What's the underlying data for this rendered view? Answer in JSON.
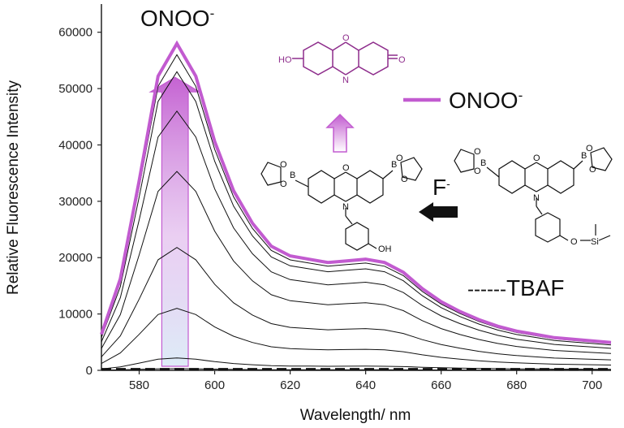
{
  "chart_data": {
    "type": "line",
    "title": "",
    "xlabel": "Wavelength/ nm",
    "ylabel": "Relative Fluorescence Intensity",
    "xlim": [
      570,
      705
    ],
    "ylim": [
      0,
      65000
    ],
    "x_ticks": [
      580,
      600,
      620,
      640,
      660,
      680,
      700
    ],
    "y_ticks": [
      0,
      10000,
      20000,
      30000,
      40000,
      50000,
      60000
    ],
    "x": [
      570,
      575,
      580,
      585,
      590,
      595,
      600,
      605,
      610,
      615,
      620,
      625,
      630,
      635,
      640,
      645,
      650,
      655,
      660,
      665,
      670,
      675,
      680,
      685,
      690,
      695,
      700,
      705
    ],
    "shape": [
      0.11,
      0.28,
      0.58,
      0.9,
      1.0,
      0.9,
      0.7,
      0.55,
      0.45,
      0.38,
      0.35,
      0.34,
      0.33,
      0.335,
      0.34,
      0.33,
      0.3,
      0.25,
      0.21,
      0.18,
      0.155,
      0.135,
      0.12,
      0.11,
      0.1,
      0.095,
      0.09,
      0.085
    ],
    "series_peaks": [
      300,
      2200,
      11000,
      21800,
      35300,
      46000,
      53000,
      56000,
      58000
    ],
    "series": [
      {
        "name": "",
        "peak": 300,
        "color": "#111111"
      },
      {
        "name": "",
        "peak": 2200,
        "color": "#111111"
      },
      {
        "name": "",
        "peak": 11000,
        "color": "#111111"
      },
      {
        "name": "",
        "peak": 21800,
        "color": "#111111"
      },
      {
        "name": "",
        "peak": 35300,
        "color": "#111111"
      },
      {
        "name": "",
        "peak": 46000,
        "color": "#111111"
      },
      {
        "name": "",
        "peak": 53000,
        "color": "#111111"
      },
      {
        "name": "",
        "peak": 56000,
        "color": "#111111"
      },
      {
        "name": "ONOO-",
        "peak": 58000,
        "color": "#c25bd0"
      },
      {
        "name": "TBAF",
        "style": "dashed",
        "value": 200,
        "color": "#111111"
      }
    ],
    "grid": false,
    "legend": [
      {
        "label": "ONOO",
        "superscript": "-",
        "style": "solid",
        "color": "#c25bd0"
      },
      {
        "label": "TBAF",
        "prefix": "------",
        "style": "dashed",
        "color": "#111111"
      }
    ],
    "annotations": {
      "top_label": "ONOO",
      "top_label_sup": "-",
      "fluoride_label": "F",
      "fluoride_sup": "-",
      "arrow_band_x": [
        586,
        593
      ],
      "arrow_peak": 52000
    }
  },
  "chemistry": {
    "resorufin": {
      "left_group": "HO",
      "right_group": "O",
      "ring_o": "O",
      "ring_n": "N"
    },
    "middle_molecule": {
      "boron": "B",
      "ring_o": "O",
      "ring_n": "N",
      "hydroxyl": "OH",
      "boronate_o": "O"
    },
    "right_molecule": {
      "boron": "B",
      "ring_o": "O",
      "ring_n": "N",
      "silyl_o": "O",
      "silicon": "Si",
      "boronate_o": "O"
    }
  },
  "colors": {
    "onoo_magenta": "#c25bd0",
    "arrow_blue": "#cfe4f4",
    "axis": "#222222",
    "curves": "#111111"
  }
}
